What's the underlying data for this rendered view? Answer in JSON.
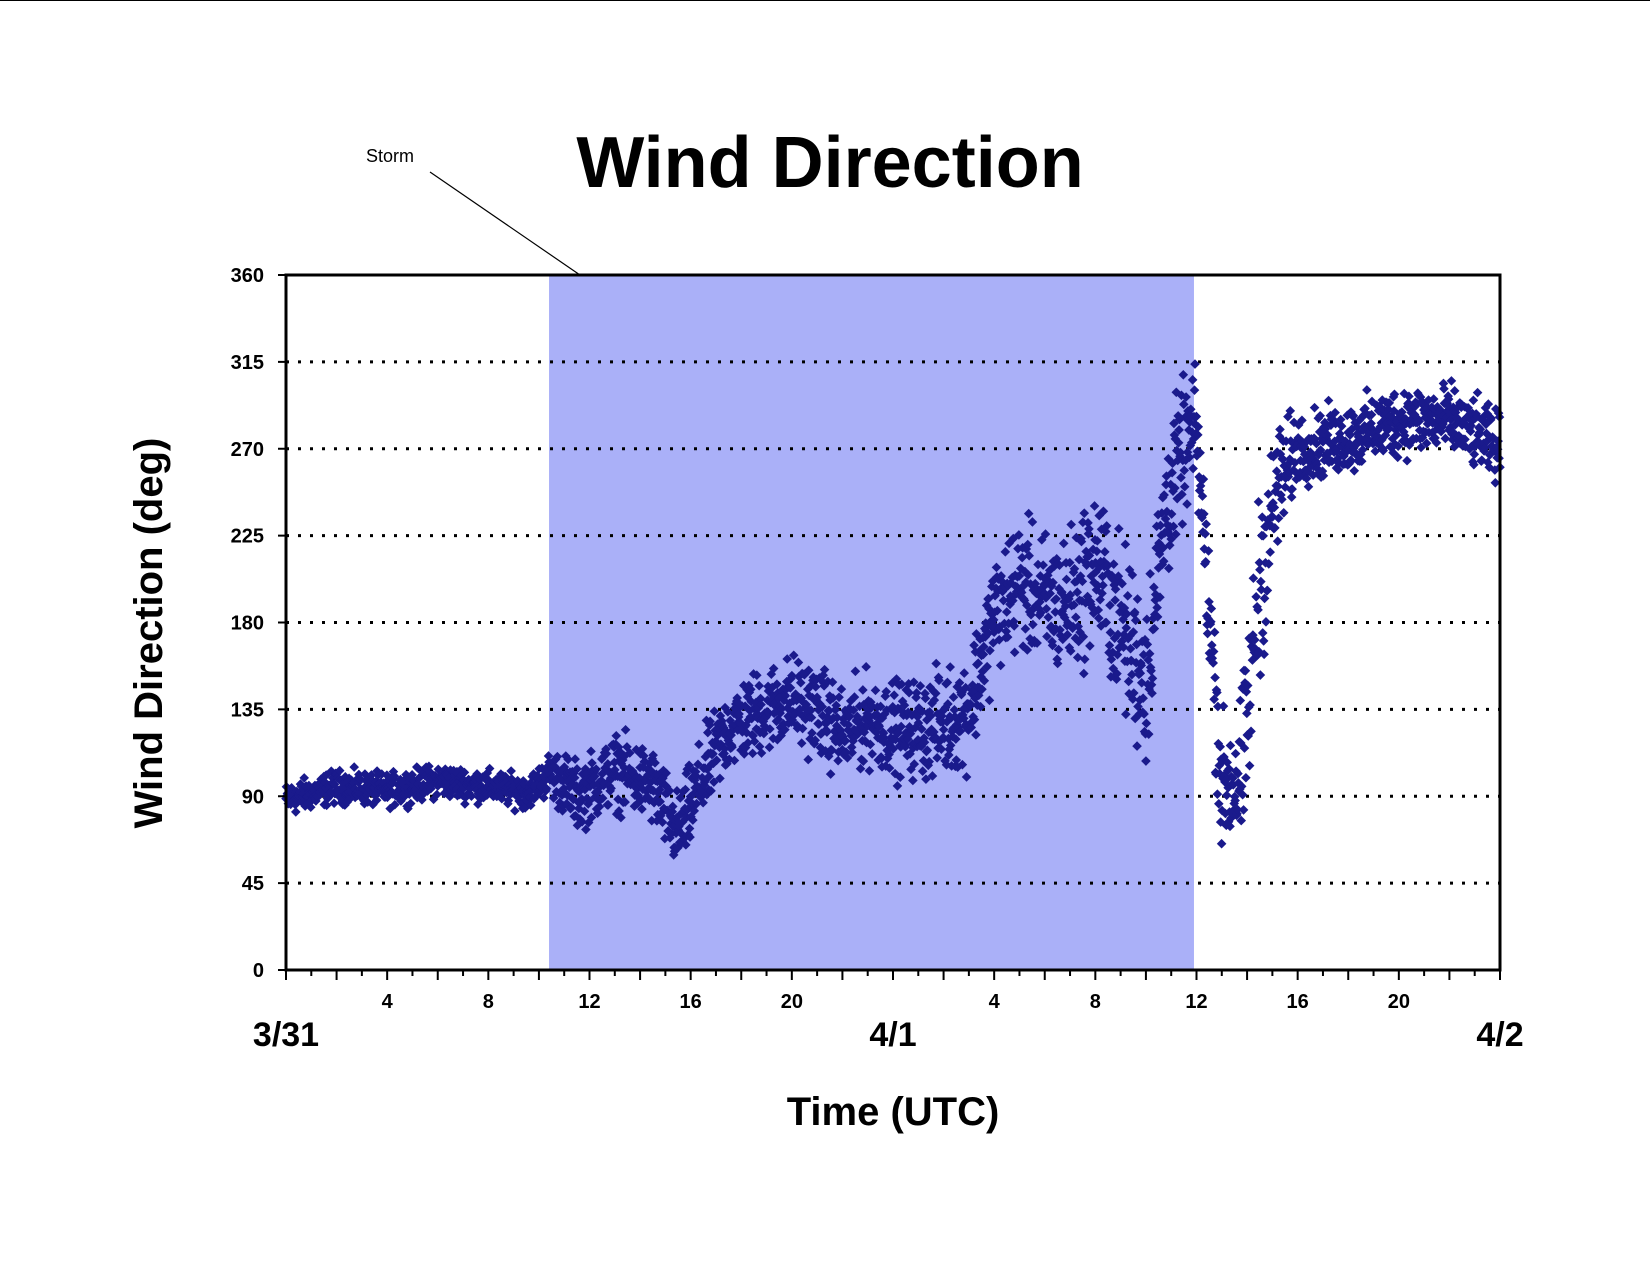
{
  "chart_data": {
    "type": "scatter",
    "title": "Wind Direction",
    "xlabel": "Time (UTC)",
    "ylabel": "Wind Direction (deg)",
    "ylim": [
      0,
      360
    ],
    "yticks": [
      0,
      45,
      90,
      135,
      180,
      225,
      270,
      315,
      360
    ],
    "xlim_hours": [
      0,
      48
    ],
    "xtick_labels": [
      {
        "hour": 4,
        "label": "4"
      },
      {
        "hour": 8,
        "label": "8"
      },
      {
        "hour": 12,
        "label": "12"
      },
      {
        "hour": 16,
        "label": "16"
      },
      {
        "hour": 20,
        "label": "20"
      },
      {
        "hour": 28,
        "label": "4"
      },
      {
        "hour": 32,
        "label": "8"
      },
      {
        "hour": 36,
        "label": "12"
      },
      {
        "hour": 40,
        "label": "16"
      },
      {
        "hour": 44,
        "label": "20"
      }
    ],
    "date_labels": [
      {
        "hour": 0,
        "label": "3/31"
      },
      {
        "hour": 24,
        "label": "4/1"
      },
      {
        "hour": 48,
        "label": "4/2"
      }
    ],
    "grid": {
      "horizontal": "dotted",
      "vertical": false
    },
    "marker": {
      "shape": "diamond",
      "color": "#1a1a8c"
    },
    "shaded_region": {
      "label": "Storm",
      "x_start_hour": 10.4,
      "x_end_hour": 35.9,
      "color": "#aab0f8"
    },
    "series": [
      {
        "trend": [
          [
            0,
            88
          ],
          [
            2,
            95
          ],
          [
            4,
            93
          ],
          [
            6,
            98
          ],
          [
            8,
            95
          ],
          [
            9.5,
            92
          ],
          [
            10.5,
            102
          ],
          [
            11.5,
            90
          ],
          [
            13,
            103
          ],
          [
            14.5,
            95
          ],
          [
            15.5,
            70
          ],
          [
            16.5,
            100
          ],
          [
            17.5,
            125
          ],
          [
            19,
            135
          ],
          [
            20,
            140
          ],
          [
            21,
            135
          ],
          [
            22,
            122
          ],
          [
            23,
            130
          ],
          [
            24,
            125
          ],
          [
            25,
            125
          ],
          [
            26,
            128
          ],
          [
            27,
            135
          ],
          [
            28,
            185
          ],
          [
            29,
            200
          ],
          [
            30,
            190
          ],
          [
            31,
            190
          ],
          [
            32,
            210
          ],
          [
            33,
            180
          ],
          [
            34,
            150
          ],
          [
            34.8,
            240
          ],
          [
            35.5,
            270
          ],
          [
            36,
            280
          ],
          [
            37,
            95
          ],
          [
            37.8,
            100
          ],
          [
            38.5,
            200
          ],
          [
            39.2,
            250
          ],
          [
            40,
            270
          ],
          [
            42,
            275
          ],
          [
            44,
            285
          ],
          [
            46,
            285
          ],
          [
            48,
            270
          ]
        ],
        "spread": [
          [
            0,
            7
          ],
          [
            10,
            7
          ],
          [
            11,
            14
          ],
          [
            16,
            18
          ],
          [
            24,
            20
          ],
          [
            28,
            25
          ],
          [
            34,
            38
          ],
          [
            36,
            25
          ],
          [
            37,
            30
          ],
          [
            38.5,
            40
          ],
          [
            40,
            15
          ],
          [
            48,
            15
          ]
        ]
      }
    ]
  }
}
